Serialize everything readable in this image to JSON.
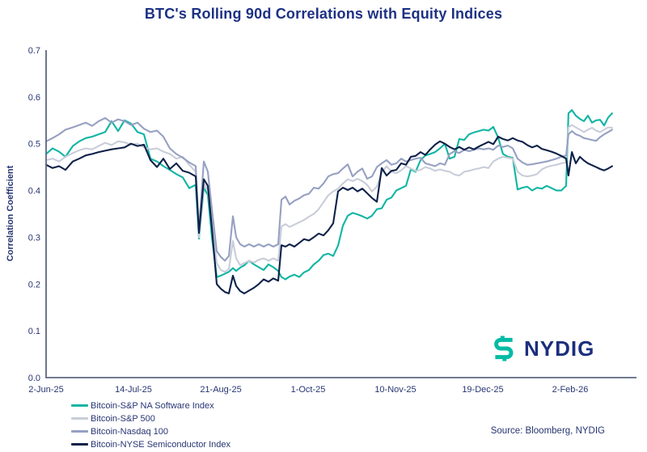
{
  "title": "BTC's Rolling 90d Correlations with Equity Indices",
  "y_axis_label": "Correlation Coefficient",
  "source": "Source: Bloomberg, NYDIG",
  "logo": {
    "text": "NYDIG"
  },
  "colors": {
    "title_text": "#1d3184",
    "tick_text": "#273572",
    "axis_line": "#5d6880",
    "background": "#ffffff",
    "logo_teal": "#00bba4",
    "logo_navy": "#1b2f7d"
  },
  "chart_data": {
    "type": "line",
    "title": "BTC's Rolling 90d Correlations with Equity Indices",
    "xlabel": "",
    "ylabel": "Correlation Coefficient",
    "ylim": [
      0,
      0.7
    ],
    "y_ticks": [
      0,
      0.1,
      0.2,
      0.3,
      0.4,
      0.5,
      0.6,
      0.7
    ],
    "grid": false,
    "legend_position": "bottom-left",
    "x_tick_labels": [
      "2-Jun-25",
      "14-Jul-25",
      "21-Aug-25",
      "1-Oct-25",
      "10-Nov-25",
      "19-Dec-25",
      "2-Feb-26"
    ],
    "x_unit": "tick index (0 = 2-Jun-25, ticks ~6 weeks apart)",
    "x": [
      0,
      0.074,
      0.148,
      0.222,
      0.306,
      0.38,
      0.454,
      0.528,
      0.602,
      0.676,
      0.75,
      0.824,
      0.898,
      0.972,
      1.046,
      1.12,
      1.194,
      1.269,
      1.343,
      1.417,
      1.491,
      1.565,
      1.639,
      1.713,
      1.75,
      1.806,
      1.852,
      1.898,
      1.954,
      2,
      2.046,
      2.093,
      2.139,
      2.176,
      2.222,
      2.269,
      2.324,
      2.38,
      2.435,
      2.491,
      2.546,
      2.602,
      2.657,
      2.694,
      2.741,
      2.787,
      2.843,
      2.898,
      2.954,
      3.009,
      3.065,
      3.12,
      3.176,
      3.231,
      3.287,
      3.343,
      3.398,
      3.454,
      3.509,
      3.565,
      3.62,
      3.676,
      3.731,
      3.787,
      3.843,
      3.898,
      3.954,
      4.009,
      4.065,
      4.12,
      4.176,
      4.231,
      4.287,
      4.343,
      4.398,
      4.454,
      4.509,
      4.565,
      4.62,
      4.676,
      4.731,
      4.787,
      4.843,
      4.898,
      4.954,
      5.009,
      5.065,
      5.12,
      5.176,
      5.231,
      5.287,
      5.343,
      5.398,
      5.454,
      5.509,
      5.565,
      5.62,
      5.676,
      5.731,
      5.787,
      5.843,
      5.898,
      5.954,
      5.981,
      6.019,
      6.065,
      6.111,
      6.157,
      6.204,
      6.25,
      6.296,
      6.343,
      6.389,
      6.435,
      6.481
    ],
    "series": [
      {
        "name": "Bitcoin-S&P NA Software Index",
        "color": "#10b5a3",
        "values": [
          0.478,
          0.49,
          0.483,
          0.472,
          0.495,
          0.505,
          0.512,
          0.515,
          0.52,
          0.525,
          0.548,
          0.527,
          0.55,
          0.543,
          0.525,
          0.52,
          0.468,
          0.462,
          0.452,
          0.444,
          0.435,
          0.428,
          0.405,
          0.412,
          0.297,
          0.406,
          0.39,
          0.3,
          0.215,
          0.218,
          0.222,
          0.226,
          0.234,
          0.228,
          0.235,
          0.24,
          0.25,
          0.242,
          0.236,
          0.23,
          0.242,
          0.236,
          0.228,
          0.215,
          0.21,
          0.216,
          0.22,
          0.215,
          0.225,
          0.23,
          0.242,
          0.25,
          0.262,
          0.265,
          0.26,
          0.282,
          0.325,
          0.346,
          0.352,
          0.349,
          0.345,
          0.34,
          0.346,
          0.36,
          0.362,
          0.38,
          0.385,
          0.4,
          0.405,
          0.41,
          0.445,
          0.44,
          0.465,
          0.475,
          0.478,
          0.482,
          0.49,
          0.5,
          0.468,
          0.472,
          0.51,
          0.508,
          0.52,
          0.524,
          0.527,
          0.53,
          0.528,
          0.536,
          0.513,
          0.478,
          0.472,
          0.47,
          0.402,
          0.406,
          0.408,
          0.4,
          0.406,
          0.404,
          0.41,
          0.405,
          0.4,
          0.4,
          0.41,
          0.565,
          0.572,
          0.56,
          0.553,
          0.548,
          0.56,
          0.545,
          0.55,
          0.551,
          0.539,
          0.556,
          0.565
        ]
      },
      {
        "name": "Bitcoin-S&P 500",
        "color": "#c9cdd9",
        "values": [
          0.465,
          0.468,
          0.462,
          0.472,
          0.48,
          0.486,
          0.49,
          0.488,
          0.495,
          0.502,
          0.497,
          0.505,
          0.503,
          0.498,
          0.5,
          0.492,
          0.488,
          0.49,
          0.483,
          0.478,
          0.468,
          0.472,
          0.455,
          0.44,
          0.3,
          0.415,
          0.4,
          0.33,
          0.245,
          0.23,
          0.226,
          0.232,
          0.292,
          0.255,
          0.24,
          0.245,
          0.25,
          0.246,
          0.252,
          0.255,
          0.25,
          0.255,
          0.25,
          0.323,
          0.328,
          0.322,
          0.327,
          0.332,
          0.337,
          0.344,
          0.35,
          0.36,
          0.375,
          0.39,
          0.398,
          0.404,
          0.415,
          0.424,
          0.42,
          0.425,
          0.42,
          0.412,
          0.398,
          0.408,
          0.438,
          0.452,
          0.44,
          0.437,
          0.443,
          0.452,
          0.447,
          0.442,
          0.444,
          0.45,
          0.447,
          0.442,
          0.445,
          0.442,
          0.44,
          0.434,
          0.432,
          0.44,
          0.442,
          0.445,
          0.447,
          0.45,
          0.448,
          0.462,
          0.468,
          0.472,
          0.47,
          0.468,
          0.44,
          0.432,
          0.43,
          0.432,
          0.435,
          0.445,
          0.45,
          0.453,
          0.455,
          0.458,
          0.46,
          0.535,
          0.54,
          0.535,
          0.53,
          0.525,
          0.53,
          0.534,
          0.528,
          0.525,
          0.53,
          0.535,
          0.534
        ]
      },
      {
        "name": "Bitcoin-Nasdaq 100",
        "color": "#96a0c2",
        "values": [
          0.505,
          0.512,
          0.52,
          0.53,
          0.535,
          0.54,
          0.545,
          0.538,
          0.548,
          0.555,
          0.545,
          0.552,
          0.548,
          0.54,
          0.545,
          0.532,
          0.525,
          0.528,
          0.515,
          0.49,
          0.478,
          0.47,
          0.46,
          0.452,
          0.315,
          0.462,
          0.44,
          0.36,
          0.27,
          0.258,
          0.25,
          0.26,
          0.345,
          0.3,
          0.285,
          0.28,
          0.285,
          0.28,
          0.285,
          0.28,
          0.285,
          0.28,
          0.285,
          0.38,
          0.387,
          0.37,
          0.378,
          0.383,
          0.39,
          0.393,
          0.406,
          0.404,
          0.415,
          0.43,
          0.435,
          0.437,
          0.447,
          0.456,
          0.43,
          0.44,
          0.447,
          0.425,
          0.43,
          0.45,
          0.458,
          0.465,
          0.455,
          0.458,
          0.468,
          0.462,
          0.465,
          0.468,
          0.47,
          0.458,
          0.455,
          0.452,
          0.458,
          0.455,
          0.478,
          0.484,
          0.48,
          0.487,
          0.484,
          0.487,
          0.49,
          0.488,
          0.49,
          0.487,
          0.496,
          0.493,
          0.496,
          0.49,
          0.468,
          0.46,
          0.455,
          0.456,
          0.458,
          0.46,
          0.462,
          0.465,
          0.468,
          0.472,
          0.475,
          0.52,
          0.527,
          0.52,
          0.517,
          0.512,
          0.51,
          0.508,
          0.506,
          0.514,
          0.52,
          0.525,
          0.53
        ]
      },
      {
        "name": "Bitcoin-NYSE Semiconductor Index",
        "color": "#0d2149",
        "values": [
          0.455,
          0.448,
          0.452,
          0.444,
          0.462,
          0.468,
          0.475,
          0.478,
          0.482,
          0.485,
          0.488,
          0.49,
          0.492,
          0.5,
          0.495,
          0.498,
          0.465,
          0.45,
          0.468,
          0.446,
          0.458,
          0.442,
          0.438,
          0.43,
          0.309,
          0.424,
          0.41,
          0.32,
          0.2,
          0.19,
          0.183,
          0.18,
          0.218,
          0.196,
          0.185,
          0.18,
          0.186,
          0.192,
          0.2,
          0.21,
          0.205,
          0.212,
          0.207,
          0.283,
          0.28,
          0.285,
          0.28,
          0.288,
          0.296,
          0.293,
          0.3,
          0.308,
          0.304,
          0.315,
          0.33,
          0.398,
          0.406,
          0.401,
          0.406,
          0.398,
          0.404,
          0.394,
          0.384,
          0.376,
          0.448,
          0.432,
          0.442,
          0.444,
          0.458,
          0.455,
          0.472,
          0.474,
          0.482,
          0.476,
          0.488,
          0.498,
          0.505,
          0.5,
          0.493,
          0.488,
          0.493,
          0.487,
          0.492,
          0.488,
          0.494,
          0.499,
          0.504,
          0.499,
          0.515,
          0.51,
          0.507,
          0.512,
          0.507,
          0.504,
          0.497,
          0.492,
          0.496,
          0.489,
          0.486,
          0.483,
          0.479,
          0.474,
          0.468,
          0.432,
          0.482,
          0.458,
          0.472,
          0.464,
          0.458,
          0.454,
          0.45,
          0.446,
          0.443,
          0.447,
          0.452
        ]
      }
    ]
  }
}
